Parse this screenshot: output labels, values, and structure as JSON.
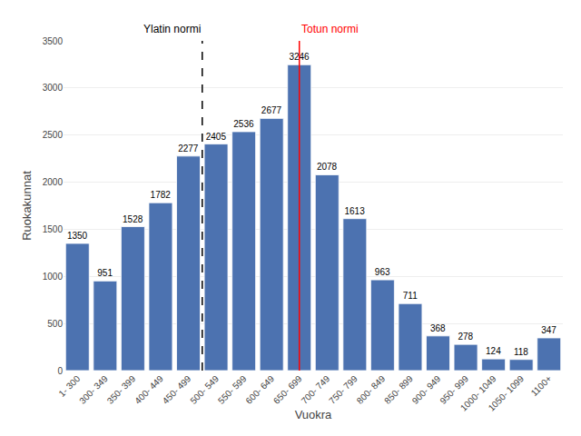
{
  "chart_data": {
    "type": "bar",
    "categories": [
      "1- 300",
      "300- 349",
      "350- 399",
      "400- 449",
      "450- 499",
      "500- 549",
      "550- 599",
      "600- 649",
      "650- 699",
      "700- 749",
      "750- 799",
      "800- 849",
      "850- 899",
      "900- 949",
      "950- 999",
      "1000- 1049",
      "1050- 1099",
      "1100+"
    ],
    "values": [
      1350,
      951,
      1528,
      1782,
      2277,
      2405,
      2536,
      2677,
      3246,
      2078,
      1613,
      963,
      711,
      368,
      278,
      124,
      118,
      347
    ],
    "color": "#4C72B0",
    "xlabel": "Vuokra",
    "ylabel": "Ruokakunnat",
    "ylim": [
      0,
      3500
    ],
    "yticks": [
      0,
      500,
      1000,
      1500,
      2000,
      2500,
      3000,
      3500
    ],
    "grid": true,
    "data_labels": true,
    "annotations": [
      {
        "text": "Ylatin normi",
        "x": 4.5,
        "line_style": "dashed",
        "color": "black"
      },
      {
        "text": "Totun normi",
        "x": 8.0,
        "line_style": "solid",
        "color": "red"
      }
    ]
  }
}
